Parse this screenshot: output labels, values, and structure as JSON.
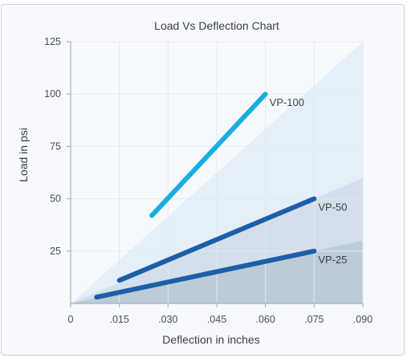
{
  "chart_data": {
    "type": "line",
    "title": "Load Vs Deflection Chart",
    "xlabel": "Deflection in inches",
    "ylabel": "Load in psi",
    "xlim": [
      0,
      0.09
    ],
    "ylim": [
      0,
      125
    ],
    "x_ticks": [
      {
        "value": 0,
        "label": "0"
      },
      {
        "value": 0.015,
        "label": ".015"
      },
      {
        "value": 0.03,
        "label": ".030"
      },
      {
        "value": 0.045,
        "label": ".045"
      },
      {
        "value": 0.06,
        "label": ".060"
      },
      {
        "value": 0.075,
        "label": ".075"
      },
      {
        "value": 0.09,
        "label": ".090"
      }
    ],
    "y_ticks": [
      {
        "value": 25,
        "label": "25"
      },
      {
        "value": 50,
        "label": "50"
      },
      {
        "value": 75,
        "label": "75"
      },
      {
        "value": 100,
        "label": "100"
      },
      {
        "value": 125,
        "label": "125"
      }
    ],
    "grid": true,
    "series": [
      {
        "name": "VP-100",
        "color": "#1aaee0",
        "points": [
          [
            0.025,
            42
          ],
          [
            0.06,
            100
          ]
        ]
      },
      {
        "name": "VP-50",
        "color": "#1c5ea8",
        "points": [
          [
            0.015,
            11
          ],
          [
            0.075,
            50
          ]
        ]
      },
      {
        "name": "VP-25",
        "color": "#1c5ea8",
        "points": [
          [
            0.008,
            3
          ],
          [
            0.075,
            25
          ]
        ]
      }
    ],
    "bands": [
      {
        "color": "#e4eff9",
        "to": [
          0.09,
          125
        ]
      },
      {
        "color": "#d3dfeb",
        "to": [
          0.09,
          60
        ]
      },
      {
        "color": "#bccbd8",
        "to": [
          0.09,
          30
        ]
      }
    ]
  }
}
